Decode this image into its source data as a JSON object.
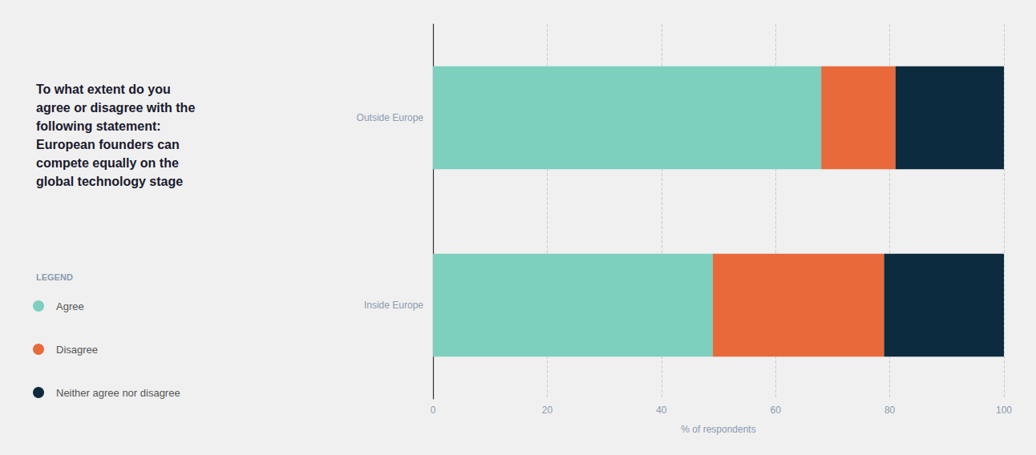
{
  "chart_data": {
    "type": "bar",
    "orientation": "horizontal",
    "stacked": true,
    "title": "To what extent do you\nagree or disagree with the\nfollowing statement:\nEuropean founders can\ncompete equally on the\nglobal technology stage",
    "legend_title": "LEGEND",
    "legend": "left",
    "categories": [
      "Outside Europe",
      "Inside Europe"
    ],
    "series": [
      {
        "name": "Agree",
        "color": "#7DCFBE",
        "values": [
          68,
          49
        ]
      },
      {
        "name": "Disagree",
        "color": "#E8693A",
        "values": [
          13,
          30
        ]
      },
      {
        "name": "Neither agree nor disagree",
        "color": "#0D2B3E",
        "values": [
          19,
          21
        ]
      }
    ],
    "xlabel": "% of respondents",
    "xlim": [
      0,
      100
    ],
    "xticks": [
      0,
      20,
      40,
      60,
      80,
      100
    ],
    "grid": true
  }
}
